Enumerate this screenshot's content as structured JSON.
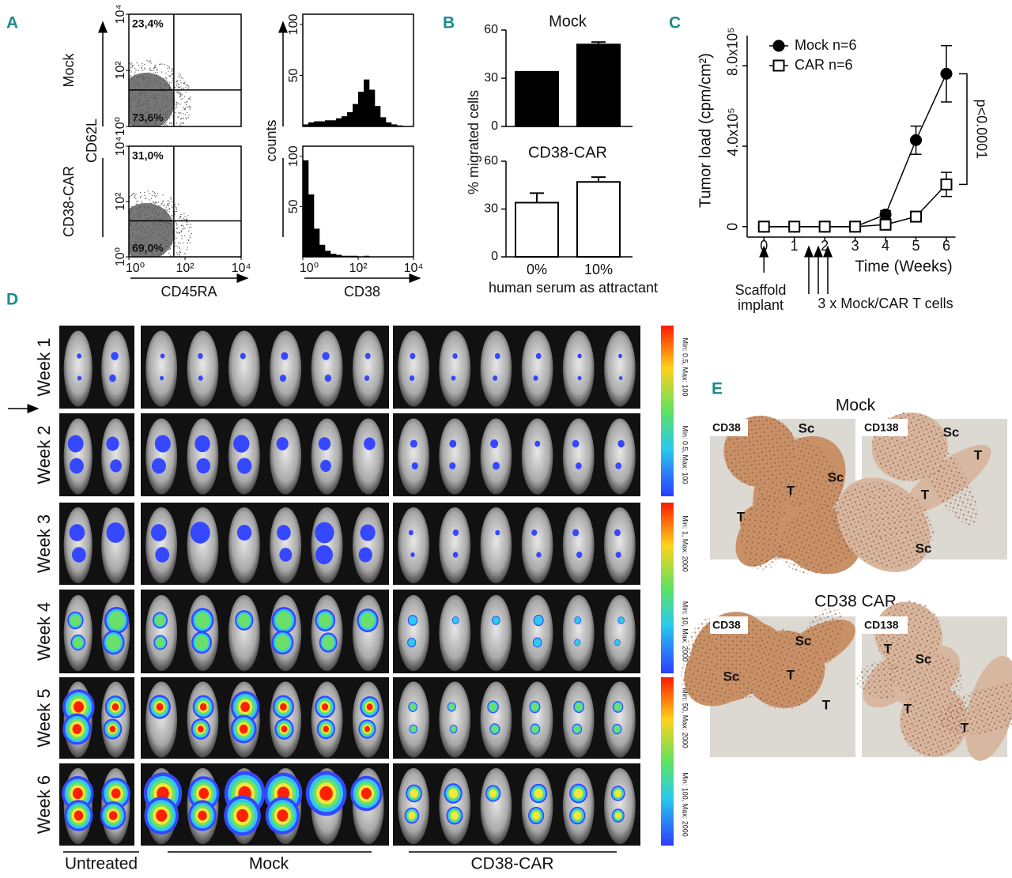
{
  "panel_labels": [
    "A",
    "B",
    "C",
    "D",
    "E"
  ],
  "panel_a": {
    "row_labels": [
      "Mock",
      "CD38-CAR"
    ],
    "scatter": {
      "x_label": "CD45RA",
      "y_label": "CD62L",
      "log_scale": true,
      "xlim": [
        1,
        10000
      ],
      "ylim": [
        1,
        10000
      ],
      "xticks": [
        {
          "value": 1,
          "label": "10⁰"
        },
        {
          "value": 100,
          "label": "10²"
        },
        {
          "value": 10000,
          "label": "10⁴"
        }
      ],
      "yticks": [
        {
          "value": 1,
          "label": "10⁰"
        },
        {
          "value": 100,
          "label": "10²"
        },
        {
          "value": 10000,
          "label": "10⁴"
        }
      ],
      "gate_x": 40,
      "gate_y": 20,
      "gate_labels": [
        [
          "23,4%",
          "73,6%"
        ],
        [
          "31,0%",
          "69,0%"
        ]
      ]
    },
    "histogram": {
      "x_label": "CD38",
      "y_label": "counts",
      "log_scale": true,
      "xlim": [
        1,
        10000
      ],
      "ylim": [
        0,
        110
      ],
      "xticks": [
        {
          "value": 1,
          "label": "10⁰"
        },
        {
          "value": 100,
          "label": "10²"
        },
        {
          "value": 10000,
          "label": "10⁴"
        }
      ],
      "yticks": [
        50,
        100
      ],
      "bins": [
        1,
        1.585,
        2.512,
        3.981,
        6.31,
        10,
        15.85,
        25.12,
        39.81,
        63.1,
        100,
        158.5,
        251.2,
        398.1,
        631,
        1000,
        1585,
        2512,
        3981,
        6310,
        10000
      ],
      "counts": [
        [
          2,
          4,
          5,
          5,
          6,
          6,
          8,
          10,
          14,
          22,
          34,
          46,
          36,
          20,
          9,
          4,
          2,
          1,
          0,
          0
        ],
        [
          96,
          62,
          28,
          12,
          6,
          3,
          2,
          1,
          1,
          1,
          0,
          1,
          0,
          0,
          0,
          0,
          0,
          0,
          0,
          0
        ]
      ]
    }
  },
  "chart_data": [
    {
      "type": "bar",
      "title": "Mock",
      "y_label": "% migrated cells",
      "categories": [
        null,
        null
      ],
      "values": [
        34,
        51
      ],
      "errors": [
        0,
        1.5
      ],
      "color": "#000000",
      "ylim": [
        0,
        60
      ],
      "yticks": [
        0,
        30,
        60
      ]
    },
    {
      "type": "bar",
      "title": "CD38-CAR",
      "x_label": "human serum as attractant",
      "categories": [
        "0%",
        "10%"
      ],
      "values": [
        34,
        47
      ],
      "errors": [
        6,
        3
      ],
      "color": "#ffffff",
      "ylim": [
        0,
        60
      ],
      "yticks": [
        0,
        30,
        60
      ]
    },
    {
      "type": "line",
      "x_label": "Time  (Weeks)",
      "y_label": "Tumor load (cpm/cm²)",
      "x": [
        0,
        1,
        2,
        3,
        4,
        5,
        6
      ],
      "xlim": [
        -0.5,
        6.3
      ],
      "xticks": [
        0,
        1,
        2,
        3,
        4,
        5,
        6
      ],
      "ylim": [
        -40000,
        950000
      ],
      "yticks": [
        0,
        {
          "value": 400000,
          "label": "4.0x10⁵"
        },
        {
          "value": 800000,
          "label": "8.0x10⁵"
        }
      ],
      "legend": "upper left",
      "series": [
        {
          "name": "Mock n=6",
          "marker": "circle",
          "color": "#000000",
          "values": [
            0,
            0,
            0,
            0,
            60000,
            430000,
            760000
          ],
          "errors": [
            0,
            0,
            0,
            0,
            20000,
            70000,
            140000
          ]
        },
        {
          "name": "CAR n=6",
          "marker": "square",
          "color": "#ffffff",
          "values": [
            0,
            0,
            0,
            0,
            10000,
            50000,
            210000
          ],
          "errors": [
            0,
            0,
            0,
            0,
            5000,
            10000,
            60000
          ]
        }
      ],
      "annotations": {
        "significance": "p<0.0001",
        "implant": [
          "Scaffold",
          "implant"
        ],
        "injections": "3 x Mock/CAR T cells"
      }
    }
  ],
  "panel_d": {
    "row_labels": [
      "Week 1",
      "Week 2",
      "Week 3",
      "Week 4",
      "Week 5",
      "Week 6"
    ],
    "group_labels": [
      "Untreated",
      "Mock",
      "CD38-CAR"
    ],
    "scale_labels": [
      "Min: 0.5, Max: 100",
      "Min: 0.5, Max: 100",
      "Min: 1, Max: 2000",
      "Min: 10, Max: 2000",
      "Min: 50, Max: 2000",
      "Min: 100, Max: 2000"
    ]
  },
  "panel_e": {
    "groups": [
      {
        "title": "Mock",
        "images": [
          {
            "stain": "CD38",
            "regions": [
              "Sc",
              "T",
              "Sc",
              "T"
            ]
          },
          {
            "stain": "CD138",
            "regions": [
              "Sc",
              "T",
              "T",
              "Sc"
            ]
          }
        ]
      },
      {
        "title": "CD38 CAR",
        "images": [
          {
            "stain": "CD38",
            "regions": [
              "Sc",
              "Sc",
              "T",
              "T"
            ]
          },
          {
            "stain": "CD138",
            "regions": [
              "T",
              "Sc",
              "T",
              "T"
            ]
          }
        ]
      }
    ]
  }
}
